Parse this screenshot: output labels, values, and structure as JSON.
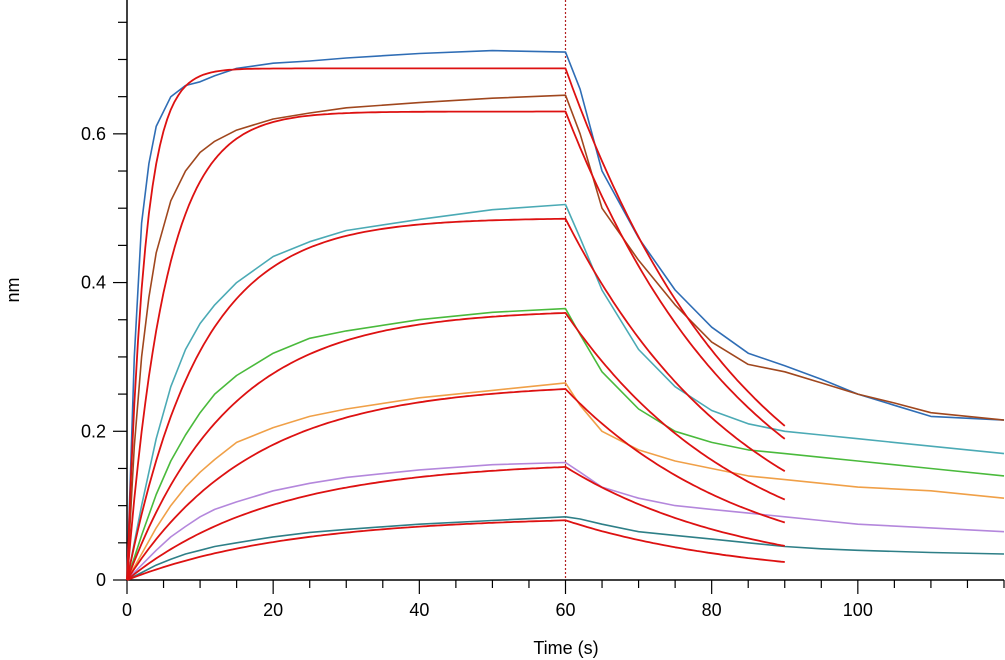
{
  "chart_data": {
    "type": "line",
    "title": "",
    "xlabel": "Time (s)",
    "ylabel": "nm",
    "xlim": [
      0,
      120
    ],
    "ylim": [
      0,
      0.78
    ],
    "xticks": [
      0,
      20,
      40,
      60,
      80,
      100
    ],
    "yticks": [
      0,
      0.2,
      0.4,
      0.6
    ],
    "ytick_labels": [
      "0",
      "0.2",
      "0.4",
      "0.6"
    ],
    "grid": false,
    "legend": "none",
    "annotations": [
      {
        "type": "vline",
        "x": 60,
        "color": "#b22222",
        "style": "dotted"
      }
    ],
    "fit_color": "#dd1111",
    "series": [
      {
        "color": "#2f6db5",
        "x": [
          0,
          1,
          2,
          3,
          4,
          6,
          8,
          10,
          12,
          15,
          20,
          25,
          30,
          40,
          50,
          60,
          62,
          65,
          70,
          75,
          80,
          85,
          90,
          95,
          100,
          105,
          110,
          120
        ],
        "y": [
          0,
          0.3,
          0.48,
          0.56,
          0.61,
          0.65,
          0.665,
          0.67,
          0.678,
          0.688,
          0.695,
          0.698,
          0.702,
          0.708,
          0.712,
          0.71,
          0.66,
          0.55,
          0.46,
          0.39,
          0.34,
          0.305,
          0.288,
          0.27,
          0.25,
          0.235,
          0.22,
          0.215
        ]
      },
      {
        "color": "#a0471e",
        "x": [
          0,
          1,
          2,
          3,
          4,
          6,
          8,
          10,
          12,
          15,
          20,
          25,
          30,
          40,
          50,
          60,
          62,
          65,
          70,
          75,
          80,
          85,
          90,
          95,
          100,
          105,
          110,
          120
        ],
        "y": [
          0,
          0.18,
          0.3,
          0.38,
          0.44,
          0.51,
          0.55,
          0.575,
          0.59,
          0.605,
          0.62,
          0.628,
          0.635,
          0.642,
          0.648,
          0.652,
          0.6,
          0.5,
          0.43,
          0.37,
          0.32,
          0.29,
          0.28,
          0.265,
          0.25,
          0.238,
          0.225,
          0.215
        ]
      },
      {
        "color": "#4baab5",
        "x": [
          0,
          2,
          4,
          6,
          8,
          10,
          12,
          15,
          20,
          25,
          30,
          40,
          50,
          60,
          62,
          65,
          70,
          75,
          80,
          85,
          90,
          95,
          100,
          110,
          120
        ],
        "y": [
          0,
          0.1,
          0.19,
          0.26,
          0.31,
          0.345,
          0.37,
          0.4,
          0.435,
          0.455,
          0.47,
          0.485,
          0.498,
          0.505,
          0.46,
          0.39,
          0.31,
          0.26,
          0.228,
          0.21,
          0.2,
          0.195,
          0.19,
          0.18,
          0.17
        ]
      },
      {
        "color": "#4aba3c",
        "x": [
          0,
          2,
          4,
          6,
          8,
          10,
          12,
          15,
          20,
          25,
          30,
          40,
          50,
          60,
          62,
          65,
          70,
          75,
          80,
          85,
          90,
          95,
          100,
          110,
          120
        ],
        "y": [
          0,
          0.06,
          0.115,
          0.16,
          0.195,
          0.225,
          0.25,
          0.275,
          0.305,
          0.325,
          0.335,
          0.35,
          0.36,
          0.365,
          0.33,
          0.28,
          0.23,
          0.2,
          0.185,
          0.175,
          0.17,
          0.165,
          0.16,
          0.15,
          0.14
        ]
      },
      {
        "color": "#f0a048",
        "x": [
          0,
          2,
          4,
          6,
          8,
          10,
          12,
          15,
          20,
          25,
          30,
          40,
          50,
          60,
          62,
          65,
          70,
          75,
          80,
          85,
          90,
          95,
          100,
          110,
          120
        ],
        "y": [
          0,
          0.035,
          0.07,
          0.1,
          0.125,
          0.145,
          0.162,
          0.185,
          0.205,
          0.22,
          0.23,
          0.245,
          0.255,
          0.265,
          0.235,
          0.2,
          0.175,
          0.16,
          0.15,
          0.14,
          0.135,
          0.13,
          0.125,
          0.12,
          0.11
        ]
      },
      {
        "color": "#b487dc",
        "x": [
          0,
          2,
          4,
          6,
          8,
          10,
          12,
          15,
          20,
          25,
          30,
          40,
          50,
          60,
          62,
          65,
          70,
          75,
          80,
          85,
          90,
          95,
          100,
          110,
          120
        ],
        "y": [
          0,
          0.02,
          0.04,
          0.058,
          0.072,
          0.085,
          0.095,
          0.105,
          0.12,
          0.13,
          0.138,
          0.148,
          0.155,
          0.158,
          0.145,
          0.125,
          0.11,
          0.1,
          0.095,
          0.09,
          0.085,
          0.08,
          0.075,
          0.07,
          0.065
        ]
      },
      {
        "color": "#2e7f87",
        "x": [
          0,
          2,
          4,
          6,
          8,
          10,
          12,
          15,
          20,
          25,
          30,
          40,
          50,
          60,
          62,
          65,
          70,
          75,
          80,
          85,
          90,
          95,
          100,
          110,
          120
        ],
        "y": [
          0,
          0.01,
          0.02,
          0.028,
          0.035,
          0.04,
          0.045,
          0.05,
          0.058,
          0.064,
          0.068,
          0.075,
          0.08,
          0.085,
          0.082,
          0.075,
          0.065,
          0.06,
          0.055,
          0.05,
          0.045,
          0.042,
          0.04,
          0.037,
          0.035
        ]
      }
    ],
    "fits": [
      {
        "plateau": 0.688,
        "ka_obs": 0.42,
        "kd": 0.04
      },
      {
        "plateau": 0.63,
        "ka_obs": 0.19,
        "kd": 0.04
      },
      {
        "plateau": 0.487,
        "ka_obs": 0.1,
        "kd": 0.04
      },
      {
        "plateau": 0.364,
        "ka_obs": 0.072,
        "kd": 0.04
      },
      {
        "plateau": 0.265,
        "ka_obs": 0.058,
        "kd": 0.04
      },
      {
        "plateau": 0.16,
        "ka_obs": 0.05,
        "kd": 0.04
      },
      {
        "plateau": 0.086,
        "ka_obs": 0.045,
        "kd": 0.04
      }
    ]
  }
}
